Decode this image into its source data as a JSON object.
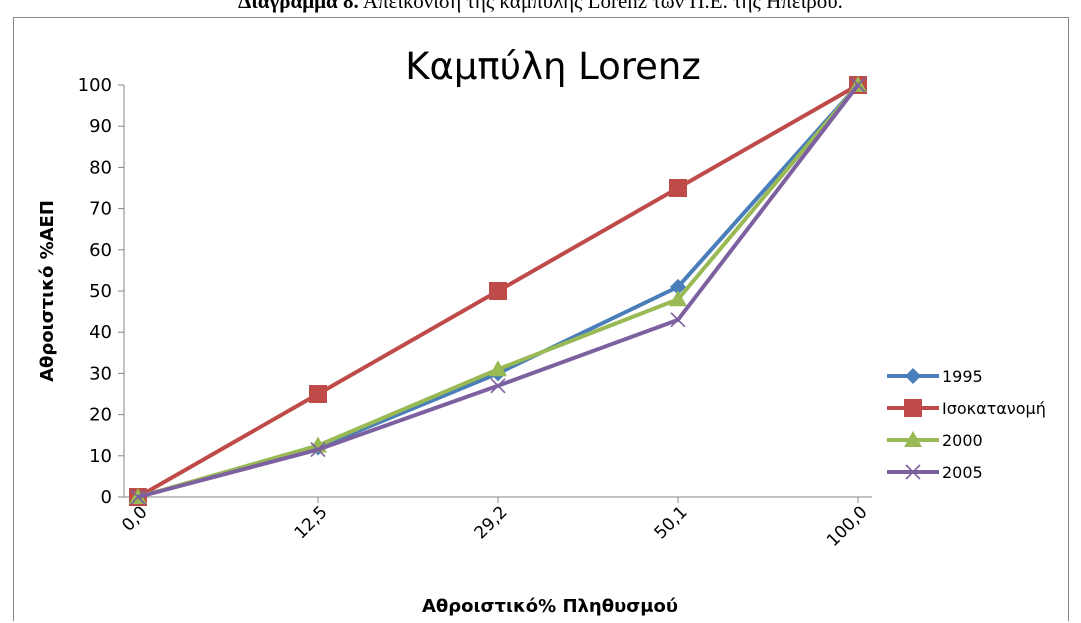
{
  "caption": {
    "bold": "Διάγραμμα 8.",
    "text": " Απεικόνιση της καμπύλης Lorenz των Π.Ε. της Ηπείρου."
  },
  "chart_data": {
    "type": "line",
    "title": "Καμπύλη Lorenz",
    "xlabel": "Αθροιστικό% Πληθυσμού",
    "ylabel": "Αθροιστικό %ΑΕΠ",
    "categories": [
      "0,0",
      "12,5",
      "29,2",
      "50,1",
      "100,0"
    ],
    "ylim": [
      0,
      100
    ],
    "yticks": [
      0,
      10,
      20,
      30,
      40,
      50,
      60,
      70,
      80,
      90,
      100
    ],
    "grid": false,
    "legend_position": "right",
    "series": [
      {
        "name": "1995",
        "color": "#4a7ebb",
        "marker": "diamond",
        "values": [
          0,
          12,
          30,
          51,
          100
        ]
      },
      {
        "name": "Ισοκατανομή",
        "color": "#be4b48",
        "marker": "square",
        "values": [
          0,
          25,
          50,
          75,
          100
        ]
      },
      {
        "name": "2000",
        "color": "#98b954",
        "marker": "triangle",
        "values": [
          0,
          12.5,
          31,
          48,
          100
        ]
      },
      {
        "name": "2005",
        "color": "#7d60a0",
        "marker": "x",
        "values": [
          0,
          11.5,
          27,
          43,
          100
        ]
      }
    ]
  }
}
